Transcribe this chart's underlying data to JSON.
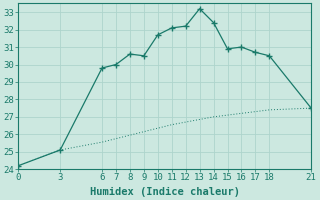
{
  "xlabel": "Humidex (Indice chaleur)",
  "ylabel": "",
  "background_color": "#cce8e0",
  "grid_color": "#aed4cc",
  "line_color": "#1a7a6a",
  "spine_color": "#1a7a6a",
  "xlim": [
    0,
    21
  ],
  "ylim": [
    24,
    33.5
  ],
  "xticks": [
    0,
    3,
    6,
    7,
    8,
    9,
    10,
    11,
    12,
    13,
    14,
    15,
    16,
    17,
    18,
    21
  ],
  "yticks": [
    24,
    25,
    26,
    27,
    28,
    29,
    30,
    31,
    32,
    33
  ],
  "line1_x": [
    0,
    3,
    6,
    7,
    8,
    9,
    10,
    11,
    12,
    13,
    14,
    15,
    16,
    17,
    18,
    21
  ],
  "line1_y": [
    24.2,
    25.1,
    29.8,
    30.0,
    30.6,
    30.5,
    31.7,
    32.1,
    32.2,
    33.2,
    32.4,
    30.9,
    31.0,
    30.7,
    30.5,
    27.5
  ],
  "line2_x": [
    0,
    3,
    6,
    7,
    8,
    9,
    10,
    11,
    12,
    13,
    14,
    15,
    16,
    17,
    18,
    21
  ],
  "line2_y": [
    24.2,
    25.1,
    25.55,
    25.75,
    25.95,
    26.15,
    26.35,
    26.55,
    26.7,
    26.85,
    27.0,
    27.1,
    27.2,
    27.3,
    27.4,
    27.5
  ],
  "tick_fontsize": 6.5,
  "xlabel_fontsize": 7.5
}
